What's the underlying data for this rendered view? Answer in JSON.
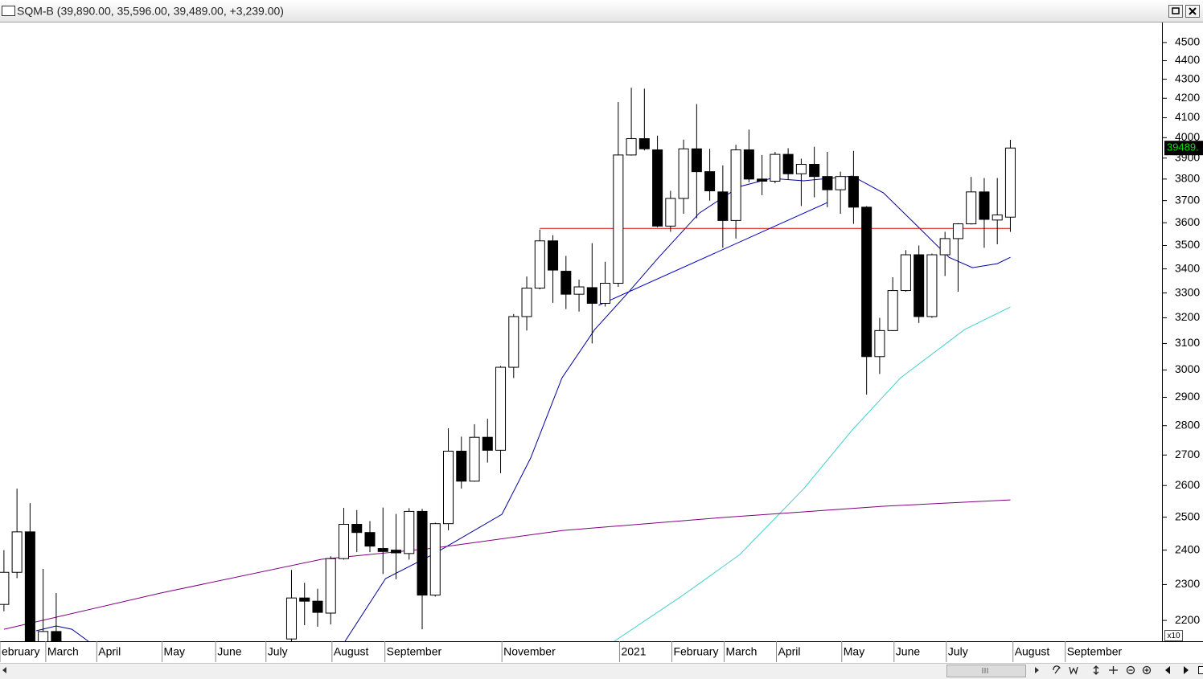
{
  "chart_data": {
    "type": "candlestick",
    "title": "SQM-B (39,890.00, 35,596.00, 39,489.00, +3,239.00)",
    "last_price_label": "39489.",
    "multiplier_label": "x10",
    "log_scale": true,
    "ylim": [
      2144,
      4613
    ],
    "yticks": [
      2200,
      2300,
      2400,
      2500,
      2600,
      2700,
      2800,
      2900,
      3000,
      3100,
      3200,
      3300,
      3400,
      3500,
      3600,
      3700,
      3800,
      3900,
      4000,
      4100,
      4200,
      4300,
      4400,
      4500
    ],
    "xlim": [
      -0.3,
      88.6
    ],
    "xticks": [
      {
        "value": -0.3,
        "label": "ebruary"
      },
      {
        "value": 3.2,
        "label": "March"
      },
      {
        "value": 7.1,
        "label": "April"
      },
      {
        "value": 12.1,
        "label": "May"
      },
      {
        "value": 16.2,
        "label": "June"
      },
      {
        "value": 20.05,
        "label": "July"
      },
      {
        "value": 25.1,
        "label": "August"
      },
      {
        "value": 29.15,
        "label": "September"
      },
      {
        "value": 38.1,
        "label": "November"
      },
      {
        "value": 47.1,
        "label": "2021"
      },
      {
        "value": 51.1,
        "label": "February"
      },
      {
        "value": 55.1,
        "label": "March"
      },
      {
        "value": 59.1,
        "label": "April"
      },
      {
        "value": 64.1,
        "label": "May"
      },
      {
        "value": 68.1,
        "label": "June"
      },
      {
        "value": 72.1,
        "label": "July"
      },
      {
        "value": 77.2,
        "label": "August"
      },
      {
        "value": 81.2,
        "label": "September"
      }
    ],
    "up_color": "#ffffff",
    "down_color": "#000000",
    "candles": {
      "x": [
        0,
        1,
        2,
        3,
        4,
        22,
        23,
        24,
        25,
        26,
        27,
        28,
        29,
        30,
        31,
        32,
        33,
        34,
        35,
        36,
        37,
        38,
        39,
        40,
        41,
        42,
        43,
        44,
        45,
        46,
        47,
        48,
        49,
        50,
        51,
        52,
        53,
        54,
        55,
        56,
        57,
        58,
        59,
        60,
        61,
        62,
        63,
        64,
        65,
        66,
        67,
        68,
        69,
        70,
        71,
        72,
        73,
        74,
        75,
        76,
        77
      ],
      "open": [
        2244,
        2335,
        2455,
        2140,
        2170,
        2150,
        2262,
        2253,
        2220,
        2375,
        2478,
        2453,
        2405,
        2400,
        2390,
        2518,
        2270,
        2480,
        2713,
        2614,
        2760,
        2716,
        3010,
        3205,
        3320,
        3520,
        3390,
        3295,
        3322,
        3258,
        3340,
        3915,
        3995,
        3940,
        3585,
        3710,
        3945,
        3835,
        3740,
        3610,
        3940,
        3800,
        3790,
        3918,
        3825,
        3870,
        3812,
        3750,
        3812,
        3670,
        3050,
        3150,
        3310,
        3460,
        3205,
        3460,
        3530,
        3595,
        3740,
        3612,
        3625
      ],
      "high": [
        2400,
        2590,
        2544,
        2345,
        2276,
        2342,
        2305,
        2288,
        2382,
        2529,
        2522,
        2488,
        2530,
        2510,
        2528,
        2526,
        2483,
        2791,
        2762,
        2805,
        2824,
        3015,
        3215,
        3368,
        3570,
        3545,
        3455,
        3355,
        3510,
        3430,
        4180,
        4255,
        4250,
        4010,
        3745,
        3990,
        4170,
        3945,
        3865,
        3965,
        4040,
        3915,
        3930,
        3948,
        3897,
        3955,
        3930,
        3835,
        3935,
        3675,
        3200,
        3365,
        3480,
        3500,
        3465,
        3560,
        3598,
        3810,
        3805,
        3805,
        3989
      ],
      "low": [
        2225,
        2318,
        2100,
        2100,
        2080,
        2120,
        2187,
        2183,
        2189,
        2372,
        2394,
        2394,
        2330,
        2315,
        2372,
        2176,
        2266,
        2460,
        2590,
        2612,
        2675,
        2640,
        2970,
        3150,
        3315,
        3260,
        3235,
        3225,
        3100,
        3245,
        3325,
        3912,
        3937,
        3580,
        3560,
        3640,
        3620,
        3700,
        3490,
        3530,
        3785,
        3725,
        3780,
        3797,
        3675,
        3715,
        3670,
        3640,
        3595,
        2910,
        2985,
        3148,
        3305,
        3180,
        3200,
        3370,
        3305,
        3592,
        3490,
        3505,
        3559.6
      ],
      "close": [
        2335,
        2455,
        2140,
        2170,
        2120,
        2262,
        2253,
        2222,
        2375,
        2478,
        2453,
        2412,
        2396,
        2392,
        2518,
        2270,
        2480,
        2713,
        2614,
        2760,
        2716,
        3010,
        3205,
        3320,
        3520,
        3395,
        3295,
        3325,
        3258,
        3340,
        3915,
        3995,
        3945,
        3585,
        3710,
        3945,
        3835,
        3745,
        3610,
        3940,
        3800,
        3790,
        3918,
        3825,
        3870,
        3812,
        3750,
        3812,
        3670,
        3050,
        3150,
        3310,
        3460,
        3205,
        3460,
        3530,
        3595,
        3740,
        3615,
        3635,
        3948.9
      ]
    },
    "series": [
      {
        "color": "#00009c",
        "x": [
          2.46,
          4.0,
          5.2,
          6.46
        ],
        "values": [
          2172,
          2185,
          2176,
          2144
        ]
      },
      {
        "color": "#00009c",
        "x": [
          26.1,
          29.2,
          32.9,
          38.1,
          40.3,
          42.7,
          45.2,
          47.7,
          50.1,
          53.2,
          56.3,
          58.7,
          61.2,
          64.9,
          67.3,
          69.8,
          72.3,
          74.1,
          76,
          77
        ],
        "values": [
          2144,
          2317,
          2389,
          2509,
          2690,
          2971,
          3154,
          3298,
          3449,
          3643,
          3765,
          3803,
          3792,
          3814,
          3735,
          3590,
          3449,
          3405,
          3422,
          3449
        ]
      },
      {
        "color": "#3fd0d0",
        "x": [
          46.7,
          52,
          56.3,
          61.2,
          64.9,
          68.6,
          73.5,
          77
        ],
        "values": [
          2144,
          2271,
          2387,
          2590,
          2785,
          2971,
          3154,
          3243
        ]
      },
      {
        "color": "#800080",
        "x": [
          0,
          12,
          24.3,
          32.9,
          42.7,
          55,
          67.3,
          77
        ],
        "values": [
          2176,
          2276,
          2373,
          2406,
          2459,
          2499,
          2534,
          2554
        ]
      },
      {
        "color": "#e00000",
        "x": [
          41,
          77
        ],
        "values": [
          3575,
          3575
        ]
      },
      {
        "color": "#0000c8",
        "x": [
          45.5,
          63
        ],
        "values": [
          3250,
          3691
        ]
      }
    ]
  }
}
